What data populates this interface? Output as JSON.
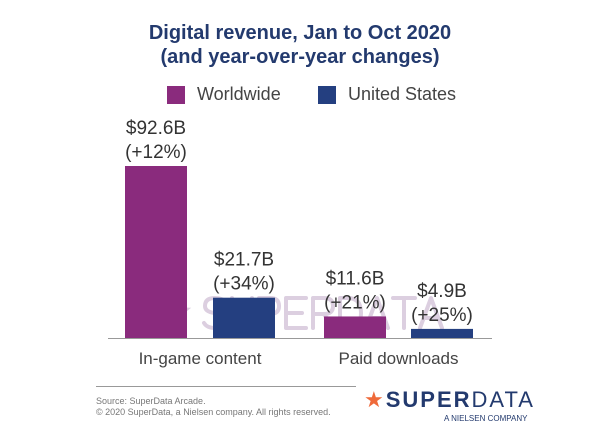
{
  "chart_data": {
    "type": "bar",
    "title": "Digital revenue, Jan to Oct 2020",
    "subtitle": "(and year-over-year changes)",
    "categories": [
      "In-game content",
      "Paid downloads"
    ],
    "series": [
      {
        "name": "Worldwide",
        "color": "#8a2b7d",
        "values": [
          92.6,
          11.6
        ],
        "labels": [
          "$92.6B",
          "$11.6B"
        ],
        "changes": [
          "(+12%)",
          "(+21%)"
        ]
      },
      {
        "name": "United States",
        "color": "#243f80",
        "values": [
          21.7,
          4.9
        ],
        "labels": [
          "$21.7B",
          "$4.9B"
        ],
        "changes": [
          "(+34%)",
          "(+25%)"
        ]
      }
    ],
    "unit": "billion USD",
    "grid": false,
    "legend": "top"
  },
  "footer": {
    "source": "Source: SuperData Arcade.",
    "copyright": "© 2020 SuperData, a Nielsen company. All rights reserved.",
    "logo_text": "SUPERDATA",
    "logo_sub": "A NIELSEN COMPANY",
    "logo_icon": "star-icon",
    "star_color": "#ef6a3a"
  }
}
